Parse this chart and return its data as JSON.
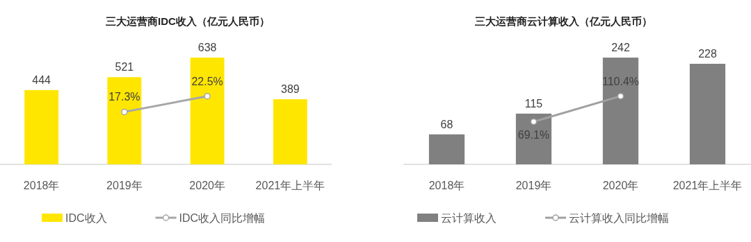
{
  "chart_data": [
    {
      "type": "bar",
      "title": "三大运营商IDC收入（亿元人民币）",
      "categories": [
        "2018年",
        "2019年",
        "2020年",
        "2021年上半年"
      ],
      "tick_labels": "x",
      "data_labels": true,
      "legend": "bottom",
      "series": [
        {
          "name": "IDC收入",
          "color": "#ffe600",
          "values": [
            444,
            521,
            638,
            389
          ]
        },
        {
          "name": "IDC收入同比增幅",
          "type": "line",
          "axis": "y2",
          "marker": "circle",
          "color": "#a6a6a6",
          "values": [
            null,
            17.3,
            22.5,
            null
          ],
          "value_labels": [
            null,
            "17.3%",
            "22.5%",
            null
          ]
        }
      ]
    },
    {
      "type": "bar",
      "title": "三大运营商云计算收入（亿元人民币）",
      "categories": [
        "2018年",
        "2019年",
        "2020年",
        "2021年上半年"
      ],
      "tick_labels": "x",
      "data_labels": true,
      "legend": "bottom",
      "series": [
        {
          "name": "云计算收入",
          "color": "#808080",
          "values": [
            68,
            115,
            242,
            228
          ]
        },
        {
          "name": "云计算收入同比增幅",
          "type": "line",
          "axis": "y2",
          "marker": "circle",
          "color": "#a0a0a0",
          "values": [
            null,
            69.1,
            110.4,
            null
          ],
          "value_labels": [
            null,
            "69.1%",
            "110.4%",
            null
          ]
        }
      ]
    }
  ]
}
